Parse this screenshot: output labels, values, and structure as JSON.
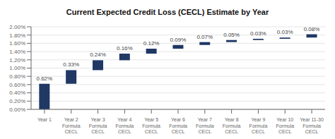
{
  "chart_data": {
    "type": "waterfall",
    "title": "Current Expected Credit Loss (CECL) Estimate by Year",
    "categories": [
      "Year 1",
      "Year 2\nFormula\nCECL",
      "Year 3\nFormula\nCECL",
      "Year 4\nFormula\nCECL",
      "Year 5\nFormula\nCECL",
      "Year 6\nFormula\nCECL",
      "Year 7\nFormula\nCECL",
      "Year 8\nFormula\nCECL",
      "Year 9\nFormula\nCECL",
      "Year 10\nFormula\nCECL",
      "Year 11-30\nFormula\nCECL"
    ],
    "values": [
      0.62,
      0.33,
      0.24,
      0.16,
      0.12,
      0.09,
      0.07,
      0.05,
      0.03,
      0.03,
      0.08
    ],
    "value_labels": [
      "0.62%",
      "0.33%",
      "0.24%",
      "0.16%",
      "0.12%",
      "0.09%",
      "0.07%",
      "0.05%",
      "0.03%",
      "0.03%",
      "0.08%"
    ],
    "color": "#1F3864",
    "ylim": [
      0.0,
      2.0
    ],
    "yticks": [
      {
        "value": 0.0,
        "label": "0.00%"
      },
      {
        "value": 0.2,
        "label": "0.20%"
      },
      {
        "value": 0.4,
        "label": "0.40%"
      },
      {
        "value": 0.6,
        "label": "0.60%"
      },
      {
        "value": 0.8,
        "label": "0.80%"
      },
      {
        "value": 1.0,
        "label": "1.00%"
      },
      {
        "value": 1.2,
        "label": "1.20%"
      },
      {
        "value": 1.4,
        "label": "1.40%"
      },
      {
        "value": 1.6,
        "label": "1.60%"
      },
      {
        "value": 1.8,
        "label": "1.80%"
      },
      {
        "value": 2.0,
        "label": "2.00%"
      }
    ],
    "grid": true,
    "data_labels": true
  }
}
